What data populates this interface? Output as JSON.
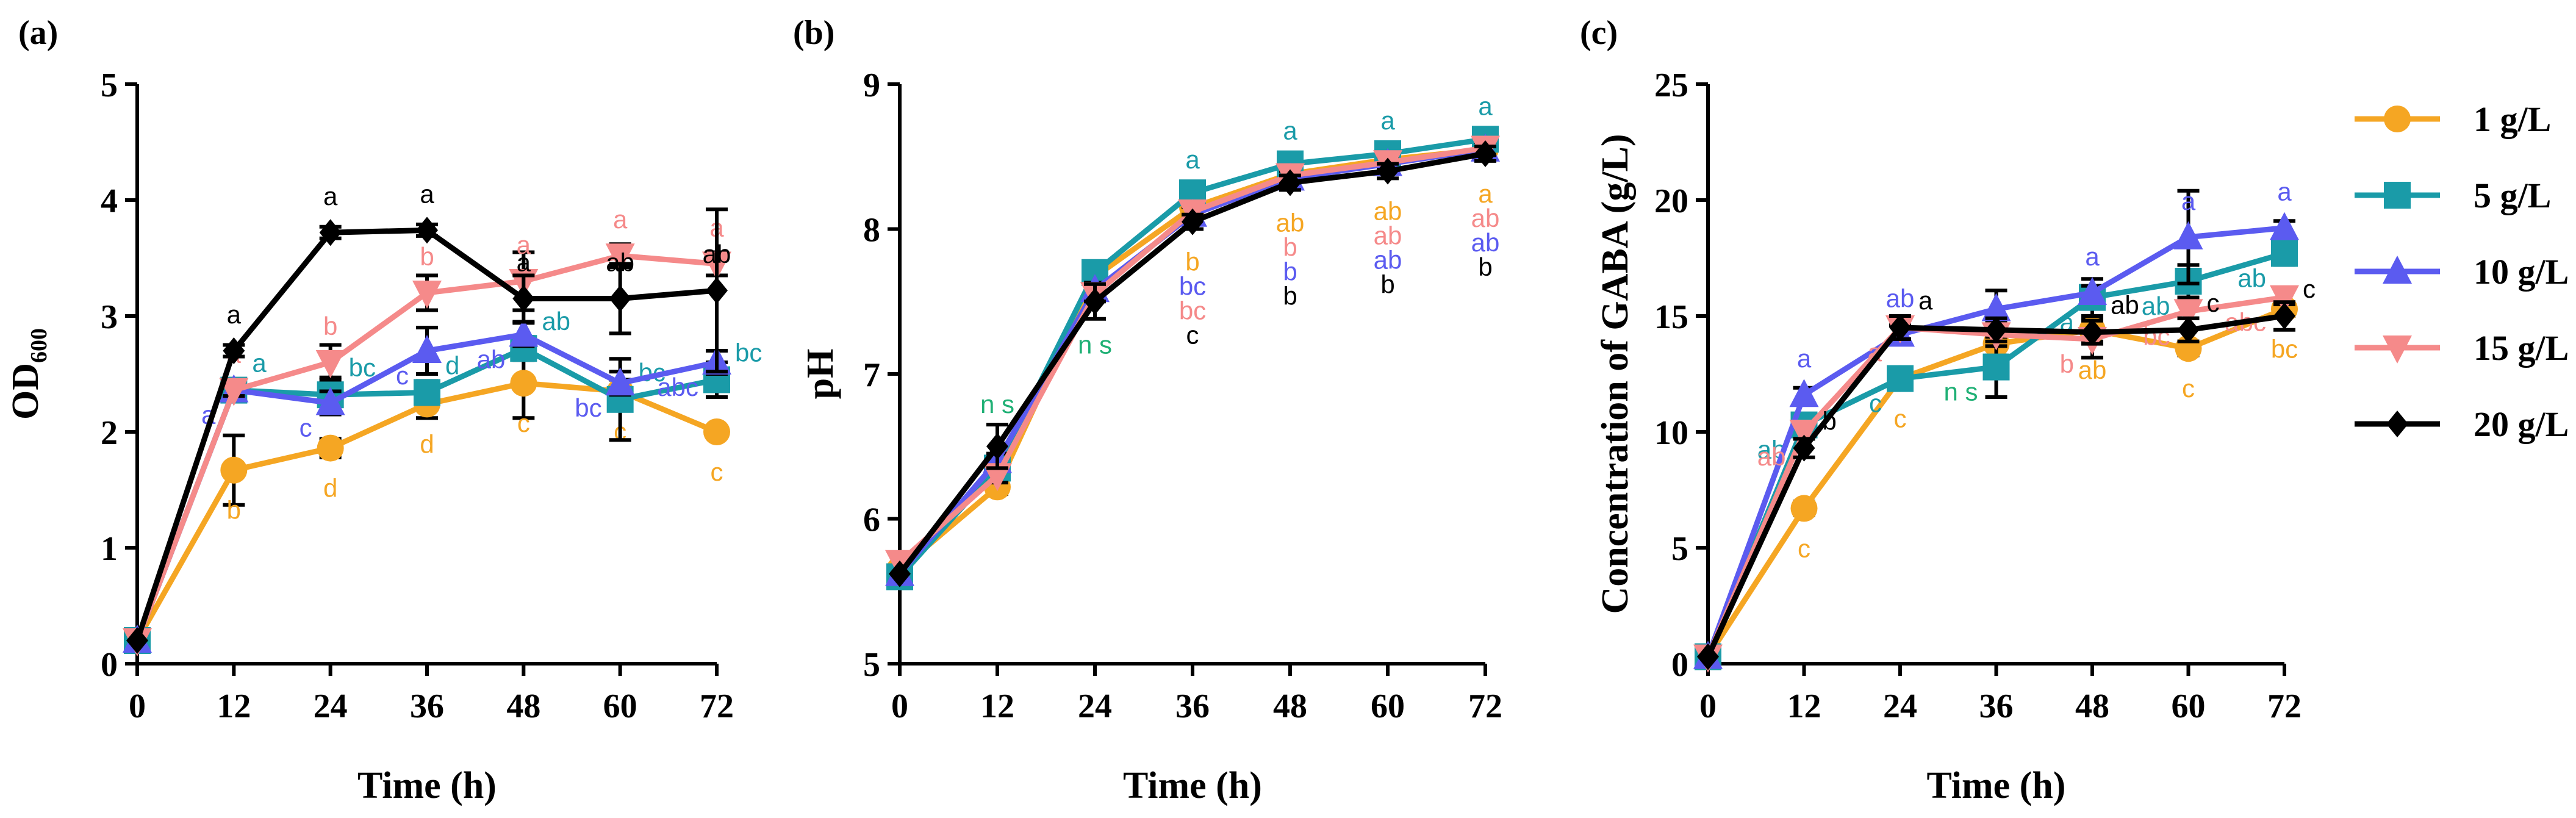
{
  "series_styles": [
    {
      "name": "1 g/L",
      "color": "#F5A623",
      "marker": "circle"
    },
    {
      "name": "5 g/L",
      "color": "#1A9BA8",
      "marker": "square"
    },
    {
      "name": "10 g/L",
      "color": "#5B5BF0",
      "marker": "triangle-up"
    },
    {
      "name": "15 g/L",
      "color": "#F58A8A",
      "marker": "triangle-down"
    },
    {
      "name": "20 g/L",
      "color": "#000000",
      "marker": "diamond"
    }
  ],
  "chart_data": [
    {
      "panel": "(a)",
      "type": "line",
      "xlabel": "Time (h)",
      "ylabel_main": "OD",
      "ylabel_sub": "600",
      "xlim": [
        0,
        72
      ],
      "ylim": [
        0,
        5
      ],
      "xticks": [
        0,
        12,
        24,
        36,
        48,
        60,
        72
      ],
      "yticks": [
        0,
        1,
        2,
        3,
        4,
        5
      ],
      "x": [
        0,
        12,
        24,
        36,
        48,
        60,
        72
      ],
      "series": [
        {
          "name": "1 g/L",
          "values": [
            0.2,
            1.67,
            1.86,
            2.24,
            2.42,
            2.35,
            2.0
          ],
          "errors": [
            0,
            0.3,
            0.08,
            0.12,
            0.3,
            0.1,
            0.05
          ],
          "letters": [
            "",
            "b",
            "d",
            "d",
            "c",
            "c",
            "c"
          ],
          "letter_side": "below"
        },
        {
          "name": "5 g/L",
          "values": [
            0.2,
            2.36,
            2.32,
            2.34,
            2.72,
            2.28,
            2.45
          ],
          "errors": [
            0,
            0.05,
            0.15,
            0.1,
            0.1,
            0.35,
            0.15
          ],
          "letters": [
            "",
            "a",
            "bc",
            "d",
            "ab",
            "bc",
            "bc"
          ],
          "letter_side": "right"
        },
        {
          "name": "10 g/L",
          "values": [
            0.2,
            2.36,
            2.25,
            2.7,
            2.84,
            2.42,
            2.6
          ],
          "errors": [
            0,
            0.05,
            0.1,
            0.2,
            0.1,
            0.1,
            0.1
          ],
          "letters": [
            "",
            "a",
            "c",
            "c",
            "ab",
            "bc",
            "abc"
          ],
          "letter_side": "left"
        },
        {
          "name": "15 g/L",
          "values": [
            0.2,
            2.36,
            2.6,
            3.2,
            3.3,
            3.52,
            3.45
          ],
          "errors": [
            0,
            0.05,
            0.15,
            0.15,
            0.25,
            0.1,
            0.1
          ],
          "letters": [
            "",
            "a",
            "b",
            "b",
            "a",
            "a",
            "a"
          ],
          "letter_side": "above"
        },
        {
          "name": "20 g/L",
          "values": [
            0.2,
            2.7,
            3.72,
            3.74,
            3.15,
            3.15,
            3.22
          ],
          "errors": [
            0,
            0.05,
            0.05,
            0.05,
            0.2,
            0.3,
            0.7
          ],
          "letters": [
            "",
            "a",
            "a",
            "a",
            "a",
            "ab",
            "ab"
          ],
          "letter_side": "above"
        }
      ]
    },
    {
      "panel": "(b)",
      "type": "line",
      "xlabel": "Time (h)",
      "ylabel_main": "pH",
      "ylabel_sub": "",
      "xlim": [
        0,
        72
      ],
      "ylim": [
        5,
        9
      ],
      "xticks": [
        0,
        12,
        24,
        36,
        48,
        60,
        72
      ],
      "yticks": [
        5,
        6,
        7,
        8,
        9
      ],
      "x": [
        0,
        12,
        24,
        36,
        48,
        60,
        72
      ],
      "series": [
        {
          "name": "1 g/L",
          "values": [
            5.65,
            6.22,
            7.67,
            8.15,
            8.38,
            8.48,
            8.55
          ],
          "errors": [
            0,
            0.05,
            0.05,
            0.05,
            0.05,
            0.05,
            0.05
          ]
        },
        {
          "name": "5 g/L",
          "values": [
            5.6,
            6.35,
            7.7,
            8.25,
            8.45,
            8.52,
            8.62
          ],
          "errors": [
            0,
            0.05,
            0.05,
            0.05,
            0.05,
            0.05,
            0.05
          ]
        },
        {
          "name": "10 g/L",
          "values": [
            5.62,
            6.4,
            7.58,
            8.1,
            8.35,
            8.45,
            8.55
          ],
          "errors": [
            0,
            0.05,
            0.05,
            0.05,
            0.05,
            0.05,
            0.05
          ]
        },
        {
          "name": "15 g/L",
          "values": [
            5.7,
            6.3,
            7.55,
            8.12,
            8.37,
            8.46,
            8.56
          ],
          "errors": [
            0,
            0.05,
            0.05,
            0.05,
            0.05,
            0.05,
            0.05
          ]
        },
        {
          "name": "20 g/L",
          "values": [
            5.62,
            6.5,
            7.5,
            8.05,
            8.32,
            8.4,
            8.52
          ],
          "errors": [
            0,
            0.15,
            0.12,
            0.05,
            0.05,
            0.05,
            0.05
          ]
        }
      ],
      "letter_stacks": [
        {
          "x": 12,
          "items": [
            {
              "text": "n s",
              "color": "#1FB075"
            }
          ]
        },
        {
          "x": 24,
          "items": [
            {
              "text": "n s",
              "color": "#1FB075"
            }
          ]
        },
        {
          "x": 36,
          "items": [
            {
              "text": "a",
              "color": "#1A9BA8"
            },
            {
              "text": "",
              "color": ""
            },
            {
              "text": "b",
              "color": "#F5A623"
            },
            {
              "text": "bc",
              "color": "#5B5BF0"
            },
            {
              "text": "bc",
              "color": "#F58A8A"
            },
            {
              "text": "c",
              "color": "#000000"
            }
          ]
        },
        {
          "x": 48,
          "items": [
            {
              "text": "a",
              "color": "#1A9BA8"
            },
            {
              "text": "",
              "color": ""
            },
            {
              "text": "ab",
              "color": "#F5A623"
            },
            {
              "text": "b",
              "color": "#F58A8A"
            },
            {
              "text": "b",
              "color": "#5B5BF0"
            },
            {
              "text": "b",
              "color": "#000000"
            }
          ]
        },
        {
          "x": 60,
          "items": [
            {
              "text": "a",
              "color": "#1A9BA8"
            },
            {
              "text": "",
              "color": ""
            },
            {
              "text": "ab",
              "color": "#F5A623"
            },
            {
              "text": "ab",
              "color": "#F58A8A"
            },
            {
              "text": "ab",
              "color": "#5B5BF0"
            },
            {
              "text": "b",
              "color": "#000000"
            }
          ]
        },
        {
          "x": 72,
          "items": [
            {
              "text": "a",
              "color": "#1A9BA8"
            },
            {
              "text": "",
              "color": ""
            },
            {
              "text": "a",
              "color": "#F5A623"
            },
            {
              "text": "ab",
              "color": "#F58A8A"
            },
            {
              "text": "ab",
              "color": "#5B5BF0"
            },
            {
              "text": "b",
              "color": "#000000"
            }
          ]
        }
      ]
    },
    {
      "panel": "(c)",
      "type": "line",
      "xlabel": "Time (h)",
      "ylabel_main": "Concentration of GABA (g/L)",
      "ylabel_sub": "",
      "xlim": [
        0,
        72
      ],
      "ylim": [
        0,
        25
      ],
      "xticks": [
        0,
        12,
        24,
        36,
        48,
        60,
        72
      ],
      "yticks": [
        0,
        5,
        10,
        15,
        20,
        25
      ],
      "x": [
        0,
        12,
        24,
        36,
        48,
        60,
        72
      ],
      "series": [
        {
          "name": "1 g/L",
          "values": [
            0.3,
            6.7,
            12.3,
            13.8,
            14.4,
            13.6,
            15.3
          ],
          "errors": [
            0,
            0.3,
            0.3,
            0.5,
            0.5,
            0.3,
            0.3
          ],
          "letters": [
            "",
            "c",
            "c",
            "",
            "ab",
            "c",
            "bc"
          ],
          "letter_side": "below"
        },
        {
          "name": "5 g/L",
          "values": [
            0.3,
            10.3,
            12.3,
            12.8,
            15.8,
            16.5,
            17.7
          ],
          "errors": [
            0,
            0.3,
            0.4,
            1.3,
            0.8,
            0.7,
            0.5
          ],
          "letters": [
            "",
            "ab",
            "c",
            "n s",
            "a",
            "ab",
            "ab"
          ],
          "letter_side": "left"
        },
        {
          "name": "10 g/L",
          "values": [
            0.3,
            11.6,
            14.2,
            15.3,
            16.0,
            18.4,
            18.8
          ],
          "errors": [
            0,
            0.3,
            0.4,
            0.8,
            0.3,
            2.0,
            0.3
          ],
          "letters": [
            "",
            "a",
            "ab",
            "",
            "a",
            "a",
            "a"
          ],
          "letter_side": "above"
        },
        {
          "name": "15 g/L",
          "values": [
            0.3,
            10.0,
            14.5,
            14.2,
            14.0,
            15.2,
            15.8
          ],
          "errors": [
            0,
            0.3,
            0.5,
            0.5,
            0.8,
            0.3,
            0.3
          ],
          "letters": [
            "",
            "ab",
            "a",
            "",
            "b",
            "bc",
            "abc"
          ],
          "letter_side": "left"
        },
        {
          "name": "20 g/L",
          "values": [
            0.3,
            9.3,
            14.5,
            14.4,
            14.3,
            14.4,
            15.0
          ],
          "errors": [
            0,
            0.4,
            0.5,
            0.5,
            0.5,
            0.5,
            0.6
          ],
          "letters": [
            "",
            "b",
            "a",
            "",
            "ab",
            "c",
            "c"
          ],
          "letter_side": "right"
        }
      ]
    }
  ]
}
